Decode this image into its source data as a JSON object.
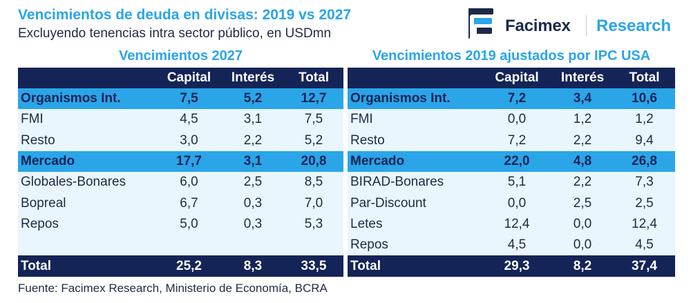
{
  "header": {
    "title": "Vencimientos de deuda en divisas: 2019 vs 2027",
    "subtitle": "Excluyendo tenencias intra sector público, en USDmn"
  },
  "logo": {
    "brand": "Facimex",
    "section": "Research"
  },
  "colors": {
    "navy": "#142457",
    "accent": "#2aa5e8",
    "row_light": "#e9f6fd"
  },
  "left": {
    "title": "Vencimientos 2027",
    "columns": [
      "",
      "Capital",
      "Interés",
      "Total"
    ],
    "rows": [
      {
        "label": "Organismos Int.",
        "capital": "7,5",
        "interes": "5,2",
        "total": "12,7"
      },
      {
        "label": "FMI",
        "capital": "4,5",
        "interes": "3,1",
        "total": "7,5"
      },
      {
        "label": "Resto",
        "capital": "3,0",
        "interes": "2,2",
        "total": "5,2"
      },
      {
        "label": "Mercado",
        "capital": "17,7",
        "interes": "3,1",
        "total": "20,8"
      },
      {
        "label": "Globales-Bonares",
        "capital": "6,0",
        "interes": "2,5",
        "total": "8,5"
      },
      {
        "label": "Bopreal",
        "capital": "6,7",
        "interes": "0,3",
        "total": "7,0"
      },
      {
        "label": "Repos",
        "capital": "5,0",
        "interes": "0,3",
        "total": "5,3"
      },
      {
        "label": "",
        "capital": "",
        "interes": "",
        "total": ""
      },
      {
        "label": "Total",
        "capital": "25,2",
        "interes": "8,3",
        "total": "33,5"
      }
    ]
  },
  "right": {
    "title": "Vencimientos 2019 ajustados por IPC USA",
    "columns": [
      "",
      "Capital",
      "Interés",
      "Total"
    ],
    "rows": [
      {
        "label": "Organismos Int.",
        "capital": "7,2",
        "interes": "3,4",
        "total": "10,6"
      },
      {
        "label": "FMI",
        "capital": "0,0",
        "interes": "1,2",
        "total": "1,2"
      },
      {
        "label": "Resto",
        "capital": "7,2",
        "interes": "2,2",
        "total": "9,4"
      },
      {
        "label": "Mercado",
        "capital": "22,0",
        "interes": "4,8",
        "total": "26,8"
      },
      {
        "label": "BIRAD-Bonares",
        "capital": "5,1",
        "interes": "2,2",
        "total": "7,3"
      },
      {
        "label": "Par-Discount",
        "capital": "0,0",
        "interes": "2,5",
        "total": "2,5"
      },
      {
        "label": "Letes",
        "capital": "12,4",
        "interes": "0,0",
        "total": "12,4"
      },
      {
        "label": "Repos",
        "capital": "4,5",
        "interes": "0,0",
        "total": "4,5"
      },
      {
        "label": "Total",
        "capital": "29,3",
        "interes": "8,2",
        "total": "37,4"
      }
    ]
  },
  "footer": {
    "source": "Fuente: Facimex Research, Ministerio de Economía, BCRA"
  }
}
